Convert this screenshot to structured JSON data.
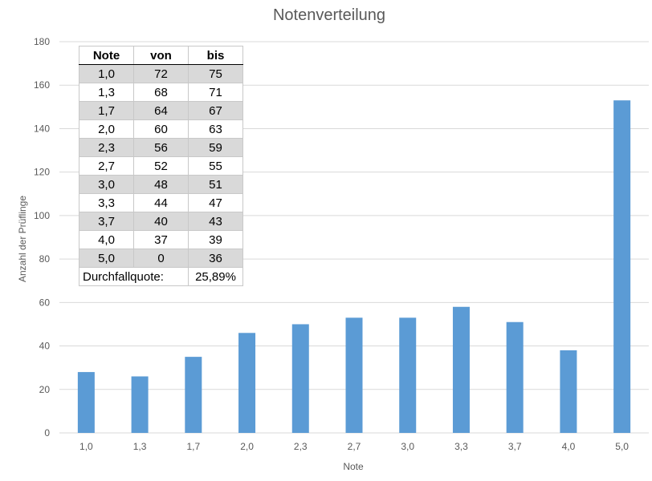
{
  "chart_data": {
    "type": "bar",
    "title": "Notenverteilung",
    "xlabel": "Note",
    "ylabel": "Anzahl der Prüflinge",
    "categories": [
      "1,0",
      "1,3",
      "1,7",
      "2,0",
      "2,3",
      "2,7",
      "3,0",
      "3,3",
      "3,7",
      "4,0",
      "5,0"
    ],
    "values": [
      28,
      26,
      35,
      46,
      50,
      53,
      53,
      58,
      51,
      38,
      153
    ],
    "ylim": [
      0,
      180
    ],
    "yticks": [
      0,
      20,
      40,
      60,
      80,
      100,
      120,
      140,
      160,
      180
    ],
    "grid": true,
    "bar_color": "#5b9bd5"
  },
  "table": {
    "headers": [
      "Note",
      "von",
      "bis"
    ],
    "rows": [
      [
        "1,0",
        "72",
        "75"
      ],
      [
        "1,3",
        "68",
        "71"
      ],
      [
        "1,7",
        "64",
        "67"
      ],
      [
        "2,0",
        "60",
        "63"
      ],
      [
        "2,3",
        "56",
        "59"
      ],
      [
        "2,7",
        "52",
        "55"
      ],
      [
        "3,0",
        "48",
        "51"
      ],
      [
        "3,3",
        "44",
        "47"
      ],
      [
        "3,7",
        "40",
        "43"
      ],
      [
        "4,0",
        "37",
        "39"
      ],
      [
        "5,0",
        "0",
        "36"
      ]
    ],
    "summary_label": "Durchfallquote:",
    "summary_value": "25,89%"
  }
}
